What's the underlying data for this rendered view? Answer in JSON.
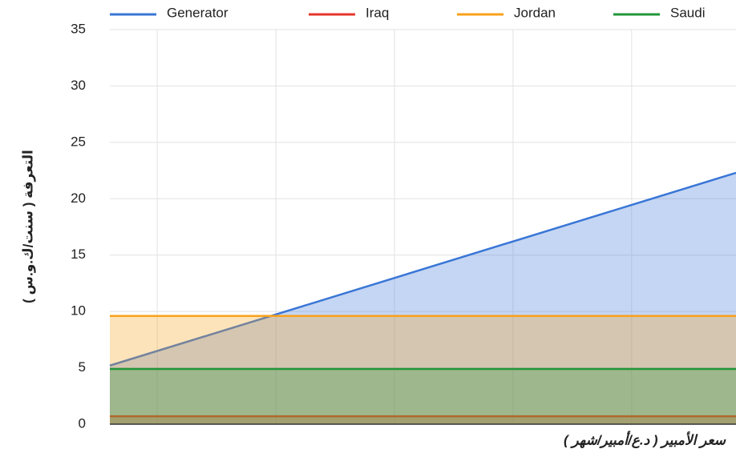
{
  "chart_data": {
    "type": "area",
    "ylabel": "التعرفة ( سنت/ك.و.س )",
    "xlabel": "سعر الأمبير ( د.ع/أمبير/شهر )",
    "x": [
      0,
      52.8
    ],
    "series": [
      {
        "name": "Generator",
        "color": "#3a76d6",
        "values": [
          5.2,
          22.3
        ]
      },
      {
        "name": "Iraq",
        "color": "#e5372a",
        "values": [
          0.7,
          0.7
        ]
      },
      {
        "name": "Jordan",
        "color": "#f9a11b",
        "values": [
          9.6,
          9.6
        ]
      },
      {
        "name": "Saudi",
        "color": "#22963a",
        "values": [
          4.9,
          4.9
        ]
      }
    ],
    "xlim": [
      0,
      52.8
    ],
    "xticks": [
      4,
      14,
      24,
      34,
      44
    ],
    "ylim": [
      0,
      35
    ],
    "yticks": [
      0,
      5,
      10,
      15,
      20,
      25,
      30,
      35
    ],
    "grid": true,
    "legend": "top"
  }
}
